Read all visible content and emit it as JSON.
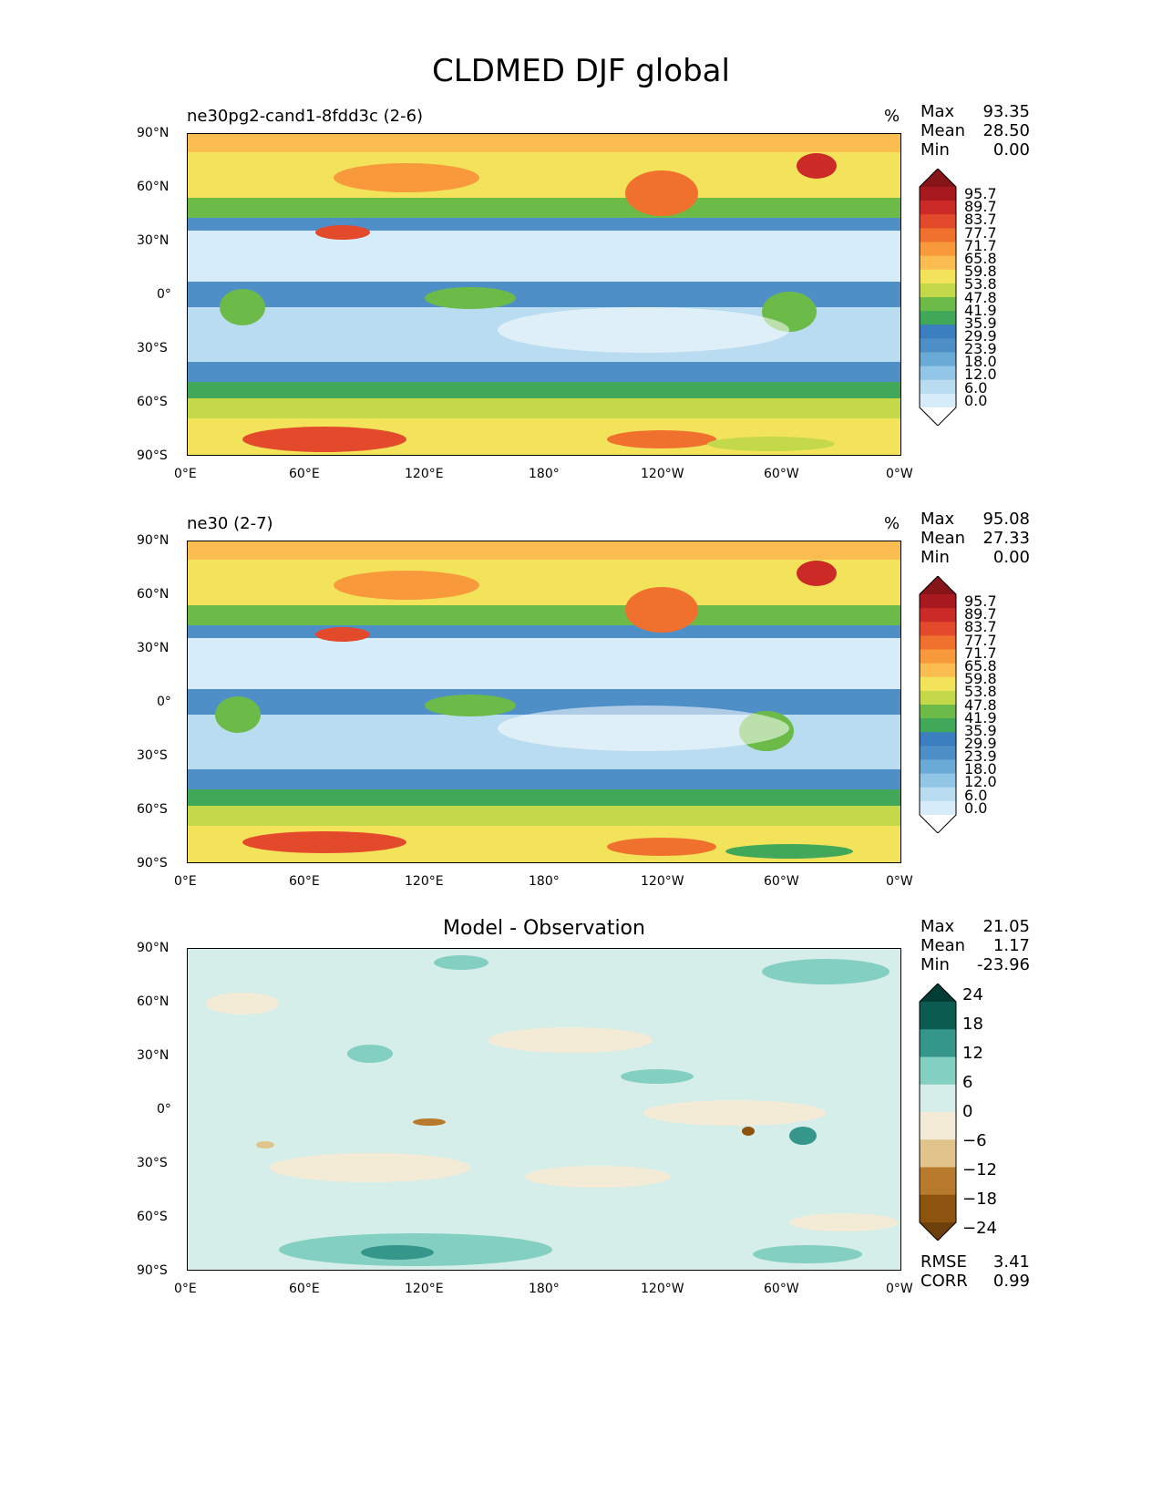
{
  "figure_title": "CLDMED DJF global",
  "panels": [
    {
      "title": "ne30pg2-cand1-8fdd3c (2-6)",
      "units": "%",
      "stats": [
        {
          "label": "Max",
          "value": "93.35"
        },
        {
          "label": "Mean",
          "value": "28.50"
        },
        {
          "label": "Min",
          "value": "0.00"
        }
      ]
    },
    {
      "title": "ne30 (2-7)",
      "units": "%",
      "stats": [
        {
          "label": "Max",
          "value": "95.08"
        },
        {
          "label": "Mean",
          "value": "27.33"
        },
        {
          "label": "Min",
          "value": "0.00"
        }
      ]
    },
    {
      "title": "Model - Observation",
      "stats": [
        {
          "label": "Max",
          "value": "21.05"
        },
        {
          "label": "Mean",
          "value": "1.17"
        },
        {
          "label": "Min",
          "value": "-23.96"
        }
      ],
      "metrics": [
        {
          "label": "RMSE",
          "value": "3.41"
        },
        {
          "label": "CORR",
          "value": "0.99"
        }
      ]
    }
  ],
  "lat_ticks": [
    "90°N",
    "60°N",
    "30°N",
    "0°",
    "30°S",
    "60°S",
    "90°S"
  ],
  "lon_ticks": [
    "0°E",
    "60°E",
    "120°E",
    "180°",
    "120°W",
    "60°W",
    "0°W"
  ],
  "colorbar_main": {
    "levels": [
      "95.7",
      "89.7",
      "83.7",
      "77.7",
      "71.7",
      "65.8",
      "59.8",
      "53.8",
      "47.8",
      "41.9",
      "35.9",
      "29.9",
      "23.9",
      "18.0",
      "12.0",
      "6.0",
      "0.0"
    ],
    "colors": [
      "#fefefe",
      "#d6ecf8",
      "#b9dcf0",
      "#92c6e6",
      "#6aaad6",
      "#4f8fc8",
      "#3b7fc0",
      "#41a85a",
      "#6cbb48",
      "#c4d94a",
      "#f3e35a",
      "#fbbd4f",
      "#f89a3b",
      "#f0702d",
      "#e34a2b",
      "#cc2a26",
      "#a8191f",
      "#861418"
    ]
  },
  "colorbar_diff": {
    "levels": [
      "24",
      "18",
      "12",
      "6",
      "0",
      "−6",
      "−12",
      "−18",
      "−24"
    ],
    "colors": [
      "#6d3f0a",
      "#8c540f",
      "#b87b2d",
      "#e0c48b",
      "#f4ebd6",
      "#d6eeea",
      "#83cfc1",
      "#35968c",
      "#0b5b51",
      "#023d35"
    ]
  }
}
